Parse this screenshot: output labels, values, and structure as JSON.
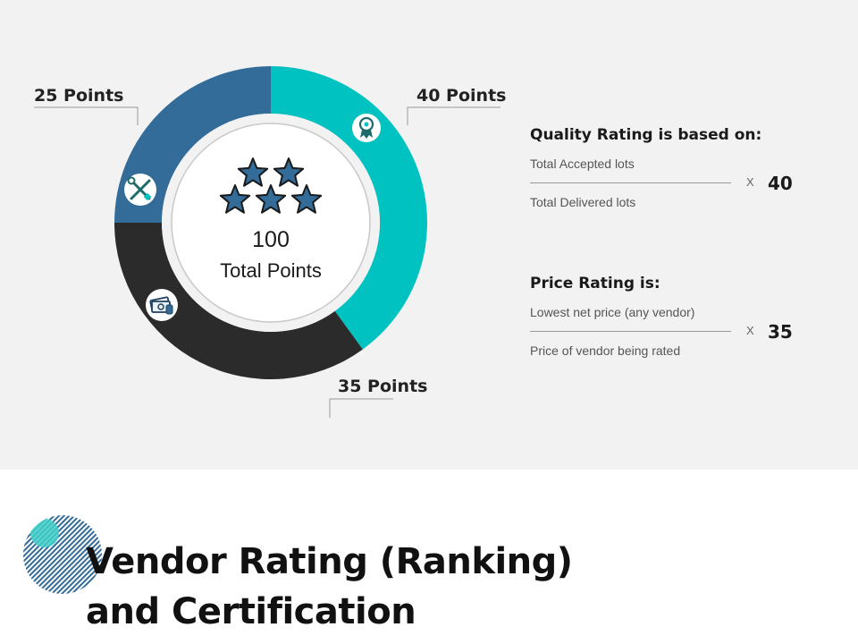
{
  "diagram": {
    "total_value": "100",
    "total_label": "Total Points",
    "segments": [
      {
        "name": "quality",
        "points": 40,
        "label": "40 Points",
        "color": "#00c2c0",
        "icon": "award-ribbon-icon"
      },
      {
        "name": "price",
        "points": 35,
        "label": "35 Points",
        "color": "#2b2b2b",
        "icon": "money-stack-icon"
      },
      {
        "name": "service",
        "points": 25,
        "label": "25 Points",
        "color": "#336b99",
        "icon": "wrench-screwdriver-icon"
      }
    ],
    "center_icon": "five-stars-icon",
    "star_color": "#336b99"
  },
  "quality": {
    "title": "Quality Rating is based on:",
    "numerator": "Total Accepted lots",
    "denominator": "Total Delivered lots",
    "times": "X",
    "weight": "40"
  },
  "price": {
    "title": "Price Rating is:",
    "numerator": "Lowest net price (any vendor)",
    "denominator": "Price of vendor being rated",
    "times": "X",
    "weight": "35"
  },
  "title": {
    "line1": "Vendor Rating (Ranking)",
    "line2": "and Certification"
  },
  "colors": {
    "panel_bg": "#f2f2f2",
    "accent_teal": "#00c2c0",
    "accent_blue": "#336b99",
    "dark": "#2b2b2b"
  }
}
